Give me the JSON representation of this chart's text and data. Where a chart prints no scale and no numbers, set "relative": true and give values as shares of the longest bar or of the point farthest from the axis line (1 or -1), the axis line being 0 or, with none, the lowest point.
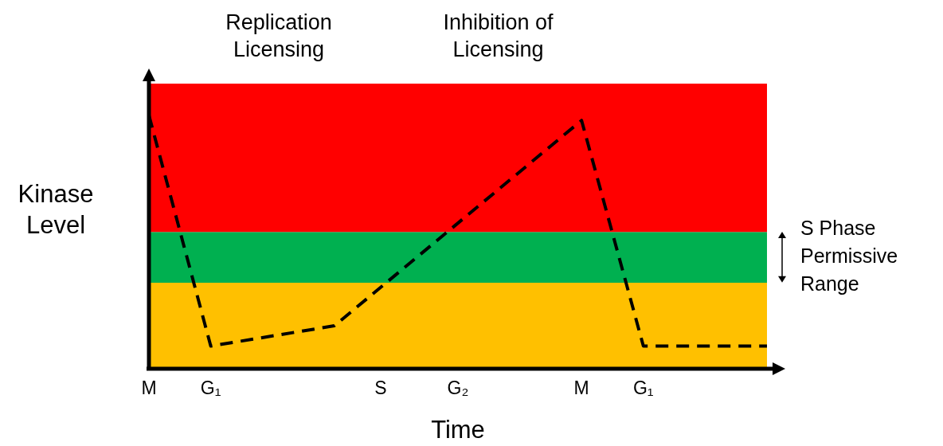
{
  "chart_data": {
    "type": "line",
    "xlabel": "Time",
    "ylabel": "Kinase Level",
    "relative": true,
    "categories": [
      "M",
      null,
      null,
      null,
      "G₁",
      null,
      null,
      null,
      null,
      null,
      null,
      null,
      null,
      null,
      null,
      "S",
      null,
      null,
      null,
      null,
      "G₂",
      null,
      null,
      null,
      null,
      null,
      null,
      null,
      "M",
      null,
      null,
      null,
      "G₁",
      null,
      null,
      null,
      null,
      null,
      null,
      null,
      null
    ],
    "series": [
      {
        "color": "#000000",
        "values": [
          1,
          null,
          null,
          null,
          0.09,
          null,
          null,
          null,
          null,
          null,
          null,
          null,
          0.17,
          null,
          null,
          null,
          null,
          null,
          null,
          null,
          null,
          null,
          null,
          null,
          null,
          null,
          null,
          null,
          0.98,
          null,
          null,
          null,
          0.09,
          null,
          null,
          null,
          null,
          null,
          null,
          null,
          0.09
        ]
      }
    ],
    "bands": [
      {
        "axis": "y",
        "from": 0,
        "to": 0.34,
        "color": "#ffc000"
      },
      {
        "axis": "y",
        "from": 0.34,
        "to": 0.54,
        "color": "#00b050",
        "label": "S Phase Permissive Range"
      },
      {
        "axis": "y",
        "from": 0.54,
        "to": 1.125,
        "color": "#ff0000"
      }
    ],
    "annotations": [
      "Replication Licensing",
      "Inhibition of Licensing"
    ],
    "line_style": "dashed",
    "marker": "none",
    "grid": false,
    "legend": false
  }
}
